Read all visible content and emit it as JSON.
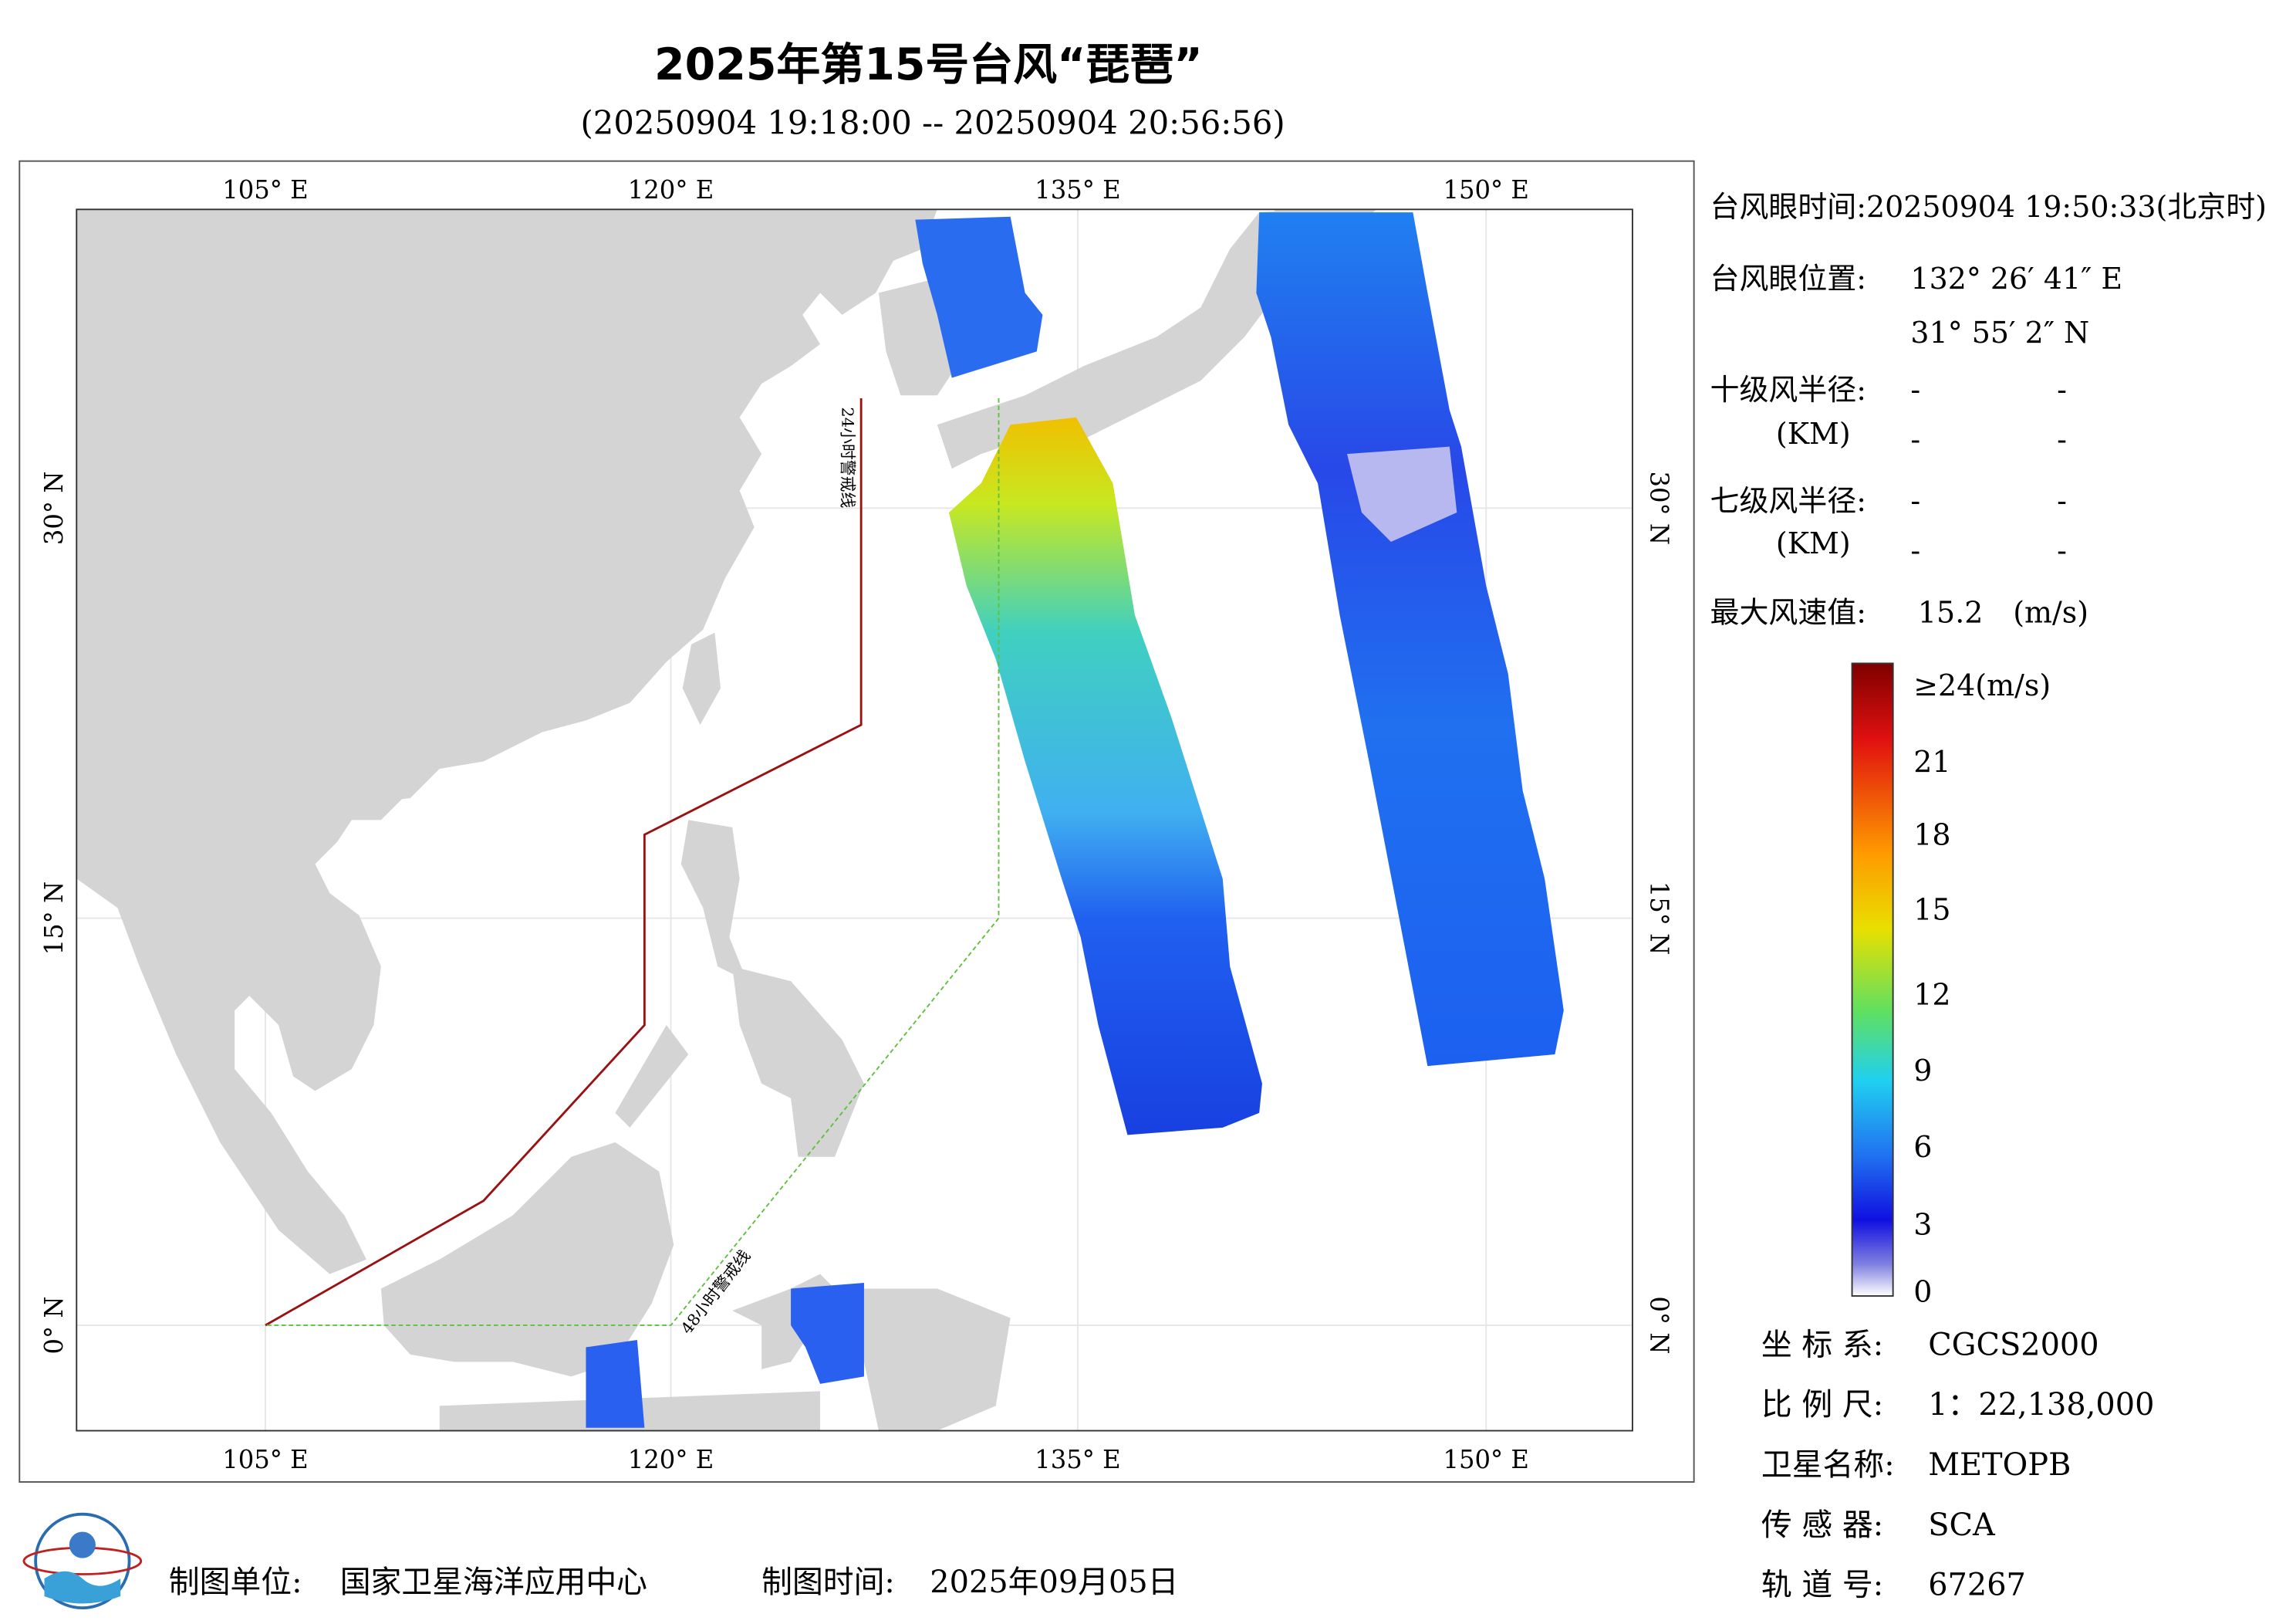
{
  "title": "2025年第15号台风“琵琶”",
  "subtitle": "(20250904 19:18:00 -- 20250904 20:56:56)",
  "map": {
    "lon_labels": [
      "105° E",
      "120° E",
      "135° E",
      "150° E"
    ],
    "lat_labels": [
      "30° N",
      "15° N",
      "0° N"
    ],
    "warning_lines": [
      "24小时警戒线",
      "48小时警戒线"
    ]
  },
  "info": {
    "eye_time": "台风眼时间:20250904 19:50:33(北京时)",
    "eye_position": {
      "label": "台风眼位置:",
      "lon": "132° 26′ 41″ E",
      "lat": "31° 55′ 2″ N"
    },
    "radius_10": {
      "label": "十级风半径:",
      "unit": "(KM)",
      "values": [
        "-",
        "-",
        "-",
        "-"
      ]
    },
    "radius_7": {
      "label": "七级风半径:",
      "unit": "(KM)",
      "values": [
        "-",
        "-",
        "-",
        "-"
      ]
    },
    "max_wind": {
      "label": "最大风速值:",
      "value": "15.2",
      "unit": "(m/s)"
    }
  },
  "legend": {
    "top_label": "≥24(m/s)",
    "ticks": [
      21,
      18,
      15,
      12,
      9,
      6,
      3,
      0
    ]
  },
  "meta": {
    "rows": [
      {
        "label": "坐 标 系:",
        "value": "CGCS2000"
      },
      {
        "label": "比 例 尺:",
        "value": "1：22,138,000"
      },
      {
        "label": "卫星名称:",
        "value": "METOPB"
      },
      {
        "label": "传 感 器:",
        "value": "SCA"
      },
      {
        "label": "轨 道 号:",
        "value": "67267"
      }
    ]
  },
  "footer": {
    "unit_label": "制图单位:",
    "unit": "国家卫星海洋应用中心",
    "date_label": "制图时间:",
    "date": "2025年09月05日"
  }
}
